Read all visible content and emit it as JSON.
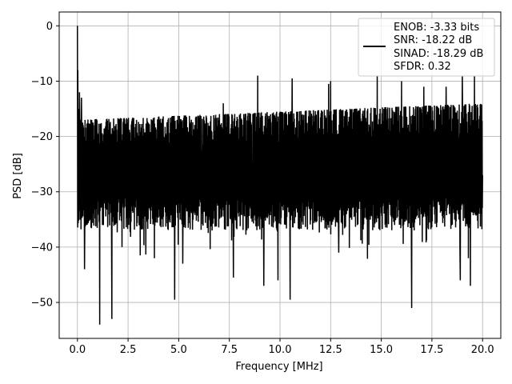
{
  "chart_data": {
    "type": "line",
    "xlabel": "Frequency [MHz]",
    "ylabel": "PSD [dB]",
    "xlim": [
      -0.9,
      20.9
    ],
    "ylim": [
      -56.5,
      2.5
    ],
    "xticks": [
      0.0,
      2.5,
      5.0,
      7.5,
      10.0,
      12.5,
      15.0,
      17.5,
      20.0
    ],
    "xtick_labels": [
      "0.0",
      "2.5",
      "5.0",
      "7.5",
      "10.0",
      "12.5",
      "15.0",
      "17.5",
      "20.0"
    ],
    "yticks": [
      0,
      -10,
      -20,
      -30,
      -40,
      -50
    ],
    "ytick_labels": [
      "0",
      "−10",
      "−20",
      "−30",
      "−40",
      "−50"
    ],
    "grid": true,
    "legend_position": "top-right",
    "legend_lines": [
      "ENOB: -3.33 bits",
      "SNR: -18.22 dB",
      "SINAD: -18.29 dB",
      "SFDR: 0.32"
    ],
    "series": [
      {
        "color": "#000000",
        "style": "noise-spectrum",
        "x": [
          0.0,
          0.02,
          0.05,
          0.1,
          0.15,
          0.2,
          0.25,
          0.3,
          0.35,
          0.4,
          0.5,
          1.1,
          1.7,
          2.2,
          3.1,
          3.8,
          4.8,
          5.2,
          7.2,
          7.7,
          8.9,
          9.2,
          9.9,
          10.5,
          10.6,
          12.4,
          12.5,
          12.9,
          14.8,
          16.0,
          16.5,
          16.6,
          17.1,
          18.2,
          18.9,
          19.0,
          19.3,
          19.4,
          19.6,
          20.0
        ],
        "y": [
          0.0,
          -8.0,
          -15.0,
          -12.0,
          -18.0,
          -13.0,
          -24.0,
          -30.0,
          -44.0,
          -35.0,
          -22.0,
          -54.0,
          -53.0,
          -40.0,
          -41.5,
          -42.0,
          -49.5,
          -43.0,
          -14.0,
          -45.5,
          -9.0,
          -47.0,
          -46.0,
          -49.5,
          -9.5,
          -10.5,
          -10.0,
          -41.0,
          -9.0,
          -10.0,
          -51.0,
          -25.0,
          -11.0,
          -11.0,
          -46.0,
          -9.0,
          -42.0,
          -47.0,
          -9.0,
          -27.0
        ],
        "noise_band": {
          "upper_envelope_start": -17.0,
          "upper_envelope_end": -14.0,
          "dense_max": -15.0,
          "dense_min": -35.0
        }
      }
    ]
  }
}
